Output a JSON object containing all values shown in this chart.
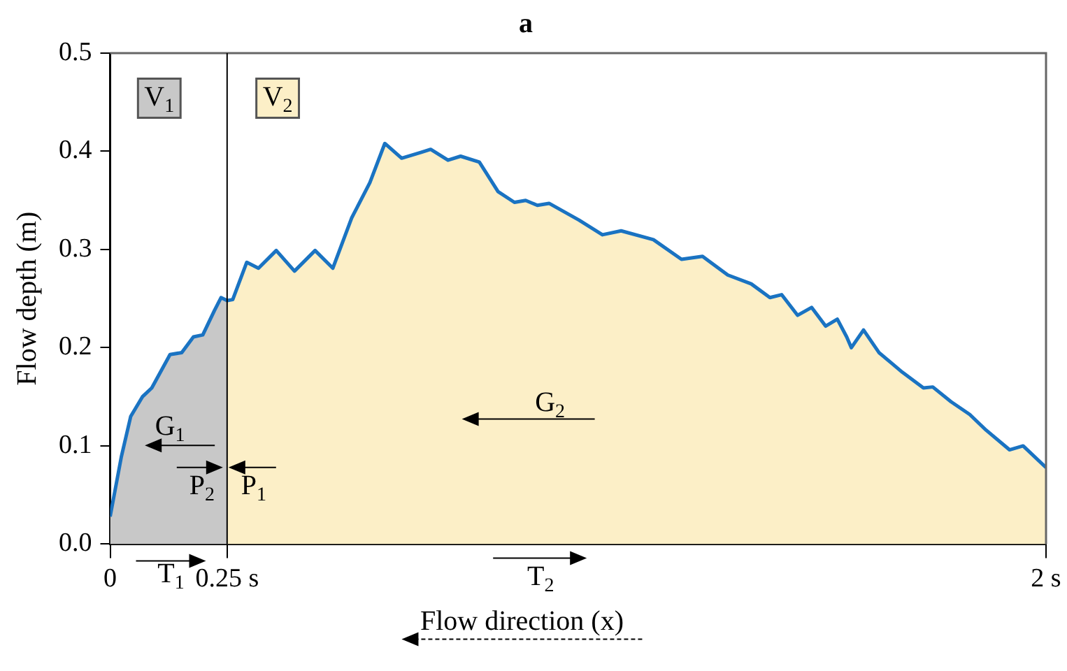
{
  "chart_data": {
    "type": "area",
    "title": "a",
    "ylabel": "Flow depth (m)",
    "xlim": [
      0,
      2
    ],
    "ylim": [
      0,
      0.5
    ],
    "xticks": [
      0,
      {
        "value": 0.25,
        "label": "0.25 s"
      },
      {
        "value": 2,
        "label": "2 s"
      }
    ],
    "yticks": [
      {
        "value": 0,
        "label": "0.0"
      },
      0.1,
      0.2,
      0.3,
      0.4,
      0.5
    ],
    "grid": false,
    "legend": false,
    "marker": "none",
    "series": [
      {
        "color": "#c8c8c8",
        "x": [
          0,
          0.024,
          0.044,
          0.069,
          0.089,
          0.128,
          0.153,
          0.178,
          0.198,
          0.223,
          0.237,
          0.25
        ],
        "values": [
          0.028,
          0.089,
          0.13,
          0.15,
          0.159,
          0.193,
          0.195,
          0.211,
          0.213,
          0.238,
          0.251,
          0.248
        ]
      },
      {
        "color": "#fcefc7",
        "x": [
          0.25,
          0.262,
          0.292,
          0.317,
          0.355,
          0.394,
          0.438,
          0.476,
          0.516,
          0.555,
          0.587,
          0.623,
          0.665,
          0.685,
          0.722,
          0.749,
          0.789,
          0.829,
          0.864,
          0.888,
          0.913,
          0.938,
          1.002,
          1.052,
          1.092,
          1.161,
          1.221,
          1.266,
          1.32,
          1.37,
          1.41,
          1.435,
          1.469,
          1.499,
          1.529,
          1.554,
          1.574,
          1.584,
          1.61,
          1.643,
          1.693,
          1.738,
          1.758,
          1.797,
          1.837,
          1.872,
          1.922,
          1.951,
          2
        ],
        "values": [
          0.248,
          0.249,
          0.287,
          0.281,
          0.299,
          0.278,
          0.299,
          0.281,
          0.332,
          0.368,
          0.408,
          0.393,
          0.399,
          0.402,
          0.391,
          0.395,
          0.389,
          0.359,
          0.348,
          0.35,
          0.345,
          0.347,
          0.33,
          0.315,
          0.319,
          0.31,
          0.29,
          0.293,
          0.274,
          0.265,
          0.251,
          0.254,
          0.233,
          0.241,
          0.222,
          0.229,
          0.211,
          0.2,
          0.218,
          0.195,
          0.175,
          0.159,
          0.16,
          0.145,
          0.132,
          0.116,
          0.096,
          0.1,
          0.078
        ]
      },
      {
        "type": "line",
        "color": "#1a73c2",
        "x": [
          0,
          0.024,
          0.044,
          0.069,
          0.089,
          0.128,
          0.153,
          0.178,
          0.198,
          0.223,
          0.237,
          0.25,
          0.262,
          0.292,
          0.317,
          0.355,
          0.394,
          0.438,
          0.476,
          0.516,
          0.555,
          0.587,
          0.623,
          0.665,
          0.685,
          0.722,
          0.749,
          0.789,
          0.829,
          0.864,
          0.888,
          0.913,
          0.938,
          1.002,
          1.052,
          1.092,
          1.161,
          1.221,
          1.266,
          1.32,
          1.37,
          1.41,
          1.435,
          1.469,
          1.499,
          1.529,
          1.554,
          1.574,
          1.584,
          1.61,
          1.643,
          1.693,
          1.738,
          1.758,
          1.797,
          1.837,
          1.872,
          1.922,
          1.951,
          2
        ],
        "values": [
          0.028,
          0.089,
          0.13,
          0.15,
          0.159,
          0.193,
          0.195,
          0.211,
          0.213,
          0.238,
          0.251,
          0.248,
          0.249,
          0.287,
          0.281,
          0.299,
          0.278,
          0.299,
          0.281,
          0.332,
          0.368,
          0.408,
          0.393,
          0.399,
          0.402,
          0.391,
          0.395,
          0.389,
          0.359,
          0.348,
          0.35,
          0.345,
          0.347,
          0.33,
          0.315,
          0.319,
          0.31,
          0.29,
          0.293,
          0.274,
          0.265,
          0.251,
          0.254,
          0.233,
          0.241,
          0.222,
          0.229,
          0.211,
          0.2,
          0.218,
          0.195,
          0.175,
          0.159,
          0.16,
          0.145,
          0.132,
          0.116,
          0.096,
          0.1,
          0.078
        ]
      }
    ],
    "ref_lines": [
      {
        "axis": "x",
        "value": 0.25,
        "color": "#000000"
      }
    ],
    "annotations": [
      {
        "text": "V$_{1}$",
        "x": 0.105,
        "y": 0.454
      },
      {
        "text": "V$_{2}$",
        "x": 0.358,
        "y": 0.454
      },
      "G$_{1}$",
      {
        "text": "P$_{2}$",
        "x": 0.25,
        "y": 0.078
      },
      {
        "text": "P$_{1}$",
        "x": 0.25,
        "y": 0.078
      },
      "G$_{2}$",
      "T$_{1}$",
      "T$_{2}$",
      "Flow direction (x)"
    ]
  }
}
